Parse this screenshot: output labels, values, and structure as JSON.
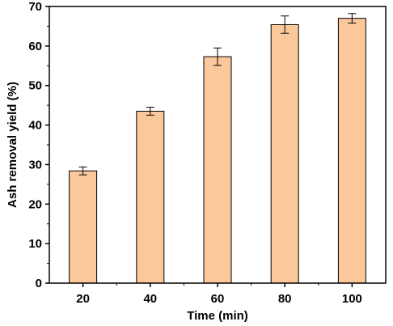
{
  "chart_data": {
    "type": "bar",
    "title": "",
    "xlabel": "Time (min)",
    "ylabel": "Ash removal yield (%)",
    "categories": [
      "20",
      "40",
      "60",
      "80",
      "100"
    ],
    "values": [
      28.4,
      43.5,
      57.3,
      65.4,
      67.0
    ],
    "error": [
      1.0,
      1.0,
      2.2,
      2.2,
      1.2
    ],
    "ylim": [
      0,
      70
    ],
    "yticks": [
      "0",
      "10",
      "20",
      "30",
      "40",
      "50",
      "60",
      "70"
    ],
    "grid": false,
    "legend": "none",
    "bar_color": "#fbc89c",
    "bar_edge_color": "#000000"
  }
}
